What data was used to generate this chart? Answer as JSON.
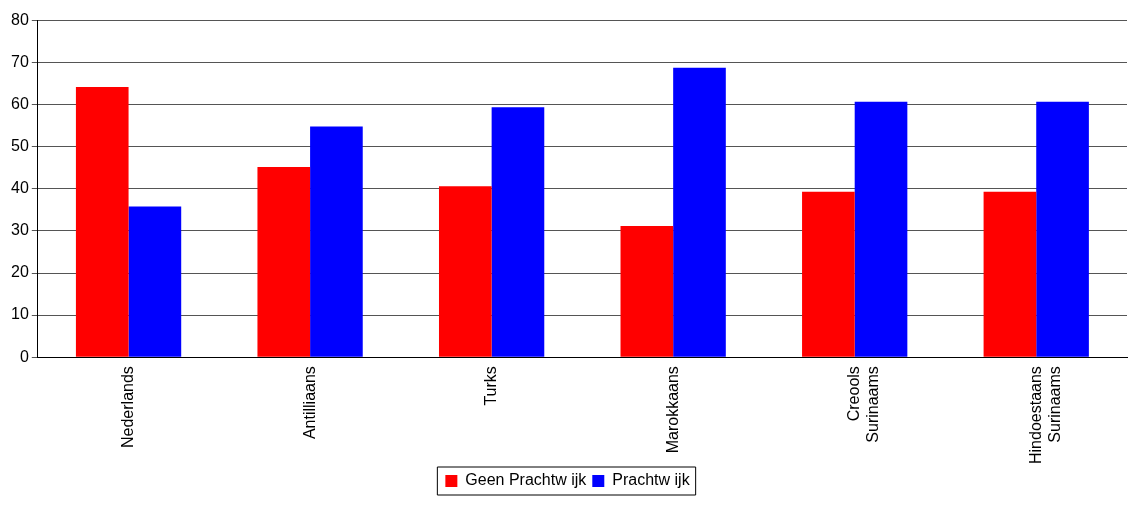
{
  "chart_data": {
    "type": "bar",
    "categories": [
      "Nederlands",
      "Antilliaans",
      "Turks",
      "Marokkaans",
      "Creools Surinaams",
      "Hindoestaans Surinaams"
    ],
    "series": [
      {
        "name": "Geen Prachtw ijk",
        "color": "#ff0000",
        "values": [
          64.2,
          45.2,
          40.6,
          31.2,
          39.3,
          39.3
        ]
      },
      {
        "name": "Prachtw ijk",
        "color": "#0000ff",
        "values": [
          35.8,
          54.8,
          59.4,
          68.8,
          60.7,
          60.7
        ]
      }
    ],
    "ylim": [
      0,
      80
    ],
    "yticks": [
      0,
      10,
      20,
      30,
      40,
      50,
      60,
      70,
      80
    ],
    "grid": "y",
    "legend": "bottom"
  }
}
